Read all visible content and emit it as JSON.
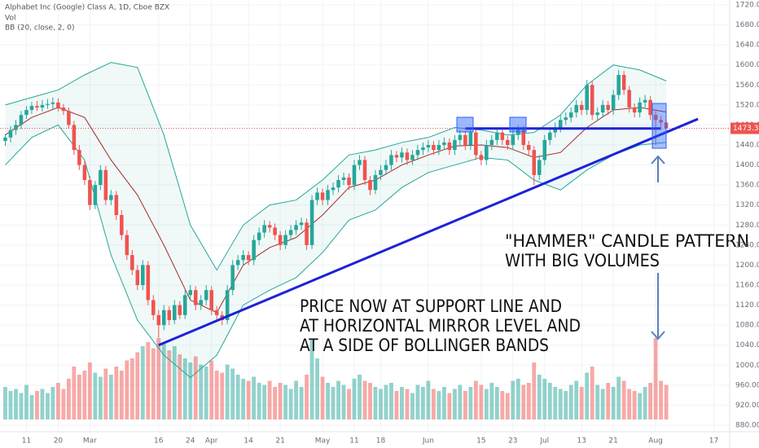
{
  "chart_data": {
    "type": "candlestick",
    "title": "Alphabet Inc (Google) Class A, 1D, Cboe BZX",
    "volume_label": "Vol",
    "indicator_label": "BB (20, close, 2, 0)",
    "up_color": "#26a69a",
    "down_color": "#ef5350",
    "band_color": "#26a69a",
    "middle_color": "#a52a2a",
    "line_color": "#1e22d8",
    "grid": true,
    "xlim": [
      -1,
      137
    ],
    "ylim": [
      880,
      1720
    ],
    "yticks": [
      {
        "value": 880,
        "label": "880.00"
      },
      {
        "value": 920,
        "label": "920.00"
      },
      {
        "value": 960,
        "label": "960.00"
      },
      {
        "value": 1000,
        "label": "1000.00"
      },
      {
        "value": 1040,
        "label": "1040.00"
      },
      {
        "value": 1080,
        "label": "1080.00"
      },
      {
        "value": 1120,
        "label": "1120.00"
      },
      {
        "value": 1160,
        "label": "1160.00"
      },
      {
        "value": 1200,
        "label": "1200.00"
      },
      {
        "value": 1240,
        "label": "1240.00"
      },
      {
        "value": 1280,
        "label": "1280.00"
      },
      {
        "value": 1320,
        "label": "1320.00"
      },
      {
        "value": 1360,
        "label": "1360.00"
      },
      {
        "value": 1400,
        "label": "1400.00"
      },
      {
        "value": 1440,
        "label": "1440.00"
      },
      {
        "value": 1480,
        "label": "1480.00"
      },
      {
        "value": 1520,
        "label": "1520.00"
      },
      {
        "value": 1560,
        "label": "1560.00"
      },
      {
        "value": 1600,
        "label": "1600.00"
      },
      {
        "value": 1640,
        "label": "1640.00"
      },
      {
        "value": 1680,
        "label": "1680.00"
      },
      {
        "value": 1720,
        "label": "1720.00"
      }
    ],
    "xticks": [
      {
        "value": 4,
        "label": "11"
      },
      {
        "value": 10,
        "label": "20"
      },
      {
        "value": 16,
        "label": "Mar"
      },
      {
        "value": 29,
        "label": "16"
      },
      {
        "value": 35,
        "label": "24"
      },
      {
        "value": 39,
        "label": "Apr"
      },
      {
        "value": 46,
        "label": "14"
      },
      {
        "value": 52,
        "label": "21"
      },
      {
        "value": 60,
        "label": "May"
      },
      {
        "value": 66,
        "label": "11"
      },
      {
        "value": 71,
        "label": "18"
      },
      {
        "value": 80,
        "label": "Jun"
      },
      {
        "value": 90,
        "label": "15"
      },
      {
        "value": 96,
        "label": "23"
      },
      {
        "value": 102,
        "label": "Jul"
      },
      {
        "value": 109,
        "label": "13"
      },
      {
        "value": 115,
        "label": "21"
      },
      {
        "value": 123,
        "label": "Aug"
      },
      {
        "value": 134,
        "label": "17"
      }
    ],
    "ohlc": [
      [
        1448,
        1462,
        1438,
        1455
      ],
      [
        1455,
        1478,
        1445,
        1470
      ],
      [
        1470,
        1490,
        1460,
        1480
      ],
      [
        1480,
        1508,
        1472,
        1500
      ],
      [
        1500,
        1518,
        1492,
        1510
      ],
      [
        1510,
        1526,
        1502,
        1518
      ],
      [
        1518,
        1528,
        1508,
        1515
      ],
      [
        1515,
        1530,
        1507,
        1520
      ],
      [
        1520,
        1532,
        1512,
        1522
      ],
      [
        1522,
        1535,
        1512,
        1525
      ],
      [
        1525,
        1533,
        1507,
        1515
      ],
      [
        1515,
        1522,
        1500,
        1508
      ],
      [
        1508,
        1515,
        1472,
        1480
      ],
      [
        1480,
        1488,
        1420,
        1430
      ],
      [
        1430,
        1440,
        1390,
        1400
      ],
      [
        1400,
        1410,
        1360,
        1370
      ],
      [
        1370,
        1378,
        1310,
        1320
      ],
      [
        1320,
        1368,
        1312,
        1360
      ],
      [
        1360,
        1400,
        1350,
        1390
      ],
      [
        1390,
        1398,
        1320,
        1330
      ],
      [
        1330,
        1350,
        1320,
        1340
      ],
      [
        1340,
        1348,
        1290,
        1300
      ],
      [
        1300,
        1310,
        1250,
        1260
      ],
      [
        1260,
        1270,
        1210,
        1220
      ],
      [
        1220,
        1230,
        1180,
        1190
      ],
      [
        1190,
        1200,
        1150,
        1160
      ],
      [
        1160,
        1210,
        1150,
        1200
      ],
      [
        1200,
        1208,
        1120,
        1130
      ],
      [
        1130,
        1140,
        1090,
        1100
      ],
      [
        1100,
        1110,
        1055,
        1080
      ],
      [
        1080,
        1120,
        1070,
        1110
      ],
      [
        1110,
        1118,
        1080,
        1090
      ],
      [
        1090,
        1130,
        1082,
        1120
      ],
      [
        1120,
        1128,
        1092,
        1100
      ],
      [
        1100,
        1150,
        1092,
        1140
      ],
      [
        1140,
        1160,
        1130,
        1150
      ],
      [
        1150,
        1158,
        1110,
        1120
      ],
      [
        1120,
        1140,
        1110,
        1130
      ],
      [
        1130,
        1160,
        1120,
        1150
      ],
      [
        1150,
        1158,
        1100,
        1110
      ],
      [
        1110,
        1118,
        1090,
        1100
      ],
      [
        1100,
        1108,
        1080,
        1090
      ],
      [
        1090,
        1160,
        1082,
        1150
      ],
      [
        1150,
        1210,
        1140,
        1200
      ],
      [
        1200,
        1220,
        1190,
        1210
      ],
      [
        1210,
        1230,
        1200,
        1220
      ],
      [
        1220,
        1228,
        1200,
        1210
      ],
      [
        1210,
        1260,
        1200,
        1250
      ],
      [
        1250,
        1275,
        1240,
        1265
      ],
      [
        1265,
        1290,
        1255,
        1280
      ],
      [
        1280,
        1288,
        1265,
        1275
      ],
      [
        1275,
        1283,
        1250,
        1260
      ],
      [
        1260,
        1268,
        1230,
        1240
      ],
      [
        1240,
        1270,
        1232,
        1260
      ],
      [
        1260,
        1280,
        1250,
        1270
      ],
      [
        1270,
        1290,
        1260,
        1280
      ],
      [
        1280,
        1295,
        1270,
        1285
      ],
      [
        1285,
        1293,
        1230,
        1240
      ],
      [
        1240,
        1340,
        1232,
        1330
      ],
      [
        1330,
        1355,
        1320,
        1345
      ],
      [
        1345,
        1353,
        1320,
        1330
      ],
      [
        1330,
        1360,
        1320,
        1350
      ],
      [
        1350,
        1365,
        1340,
        1355
      ],
      [
        1355,
        1380,
        1345,
        1370
      ],
      [
        1370,
        1385,
        1360,
        1375
      ],
      [
        1375,
        1383,
        1350,
        1360
      ],
      [
        1360,
        1410,
        1350,
        1400
      ],
      [
        1400,
        1420,
        1390,
        1410
      ],
      [
        1410,
        1418,
        1360,
        1370
      ],
      [
        1370,
        1378,
        1340,
        1350
      ],
      [
        1350,
        1390,
        1342,
        1380
      ],
      [
        1380,
        1400,
        1370,
        1390
      ],
      [
        1390,
        1410,
        1380,
        1400
      ],
      [
        1400,
        1430,
        1390,
        1420
      ],
      [
        1420,
        1428,
        1405,
        1415
      ],
      [
        1415,
        1435,
        1405,
        1425
      ],
      [
        1425,
        1433,
        1400,
        1410
      ],
      [
        1410,
        1430,
        1400,
        1420
      ],
      [
        1420,
        1440,
        1410,
        1430
      ],
      [
        1430,
        1445,
        1420,
        1435
      ],
      [
        1435,
        1450,
        1425,
        1440
      ],
      [
        1440,
        1448,
        1420,
        1430
      ],
      [
        1430,
        1450,
        1420,
        1440
      ],
      [
        1440,
        1455,
        1430,
        1445
      ],
      [
        1445,
        1453,
        1420,
        1430
      ],
      [
        1430,
        1460,
        1420,
        1450
      ],
      [
        1450,
        1470,
        1440,
        1460
      ],
      [
        1460,
        1468,
        1430,
        1440
      ],
      [
        1440,
        1475,
        1430,
        1465
      ],
      [
        1465,
        1473,
        1410,
        1420
      ],
      [
        1420,
        1428,
        1400,
        1410
      ],
      [
        1410,
        1450,
        1400,
        1440
      ],
      [
        1440,
        1460,
        1430,
        1450
      ],
      [
        1450,
        1475,
        1440,
        1465
      ],
      [
        1465,
        1473,
        1440,
        1450
      ],
      [
        1450,
        1458,
        1430,
        1440
      ],
      [
        1440,
        1470,
        1430,
        1460
      ],
      [
        1460,
        1480,
        1450,
        1470
      ],
      [
        1470,
        1478,
        1430,
        1440
      ],
      [
        1440,
        1448,
        1420,
        1430
      ],
      [
        1430,
        1438,
        1360,
        1380
      ],
      [
        1380,
        1420,
        1370,
        1410
      ],
      [
        1410,
        1460,
        1400,
        1450
      ],
      [
        1450,
        1475,
        1440,
        1465
      ],
      [
        1465,
        1485,
        1455,
        1475
      ],
      [
        1475,
        1500,
        1465,
        1490
      ],
      [
        1490,
        1505,
        1480,
        1495
      ],
      [
        1495,
        1515,
        1485,
        1505
      ],
      [
        1505,
        1530,
        1495,
        1520
      ],
      [
        1520,
        1528,
        1500,
        1510
      ],
      [
        1510,
        1570,
        1500,
        1560
      ],
      [
        1560,
        1568,
        1490,
        1500
      ],
      [
        1500,
        1515,
        1490,
        1505
      ],
      [
        1505,
        1530,
        1495,
        1520
      ],
      [
        1520,
        1528,
        1500,
        1510
      ],
      [
        1510,
        1550,
        1500,
        1540
      ],
      [
        1540,
        1590,
        1530,
        1580
      ],
      [
        1580,
        1588,
        1540,
        1550
      ],
      [
        1550,
        1558,
        1505,
        1515
      ],
      [
        1515,
        1523,
        1495,
        1505
      ],
      [
        1505,
        1535,
        1495,
        1525
      ],
      [
        1525,
        1540,
        1515,
        1530
      ],
      [
        1530,
        1538,
        1490,
        1500
      ],
      [
        1500,
        1508,
        1440,
        1490
      ],
      [
        1490,
        1498,
        1475,
        1485
      ],
      [
        1485,
        1490,
        1465,
        1473.3
      ]
    ],
    "volume": [
      1.6,
      1.4,
      1.5,
      1.3,
      1.7,
      1.2,
      1.4,
      1.5,
      1.3,
      1.6,
      1.8,
      1.5,
      2.0,
      2.6,
      2.2,
      2.4,
      2.8,
      2.3,
      2.1,
      2.5,
      2.2,
      2.6,
      2.4,
      2.9,
      3.0,
      3.3,
      3.6,
      3.8,
      3.5,
      4.0,
      3.7,
      3.4,
      3.6,
      3.2,
      3.0,
      2.8,
      3.1,
      2.7,
      2.6,
      2.9,
      2.4,
      2.3,
      2.7,
      2.5,
      2.2,
      2.0,
      1.9,
      2.1,
      1.8,
      1.7,
      1.9,
      1.6,
      1.8,
      1.7,
      1.5,
      1.9,
      1.6,
      2.2,
      3.9,
      3.0,
      2.1,
      1.8,
      1.6,
      1.9,
      1.7,
      1.5,
      2.0,
      2.2,
      1.9,
      1.8,
      1.6,
      1.5,
      1.7,
      1.8,
      1.4,
      1.6,
      1.5,
      1.3,
      1.7,
      1.6,
      1.9,
      1.5,
      1.4,
      1.6,
      1.3,
      1.5,
      1.7,
      1.4,
      1.6,
      1.9,
      1.7,
      1.5,
      1.8,
      1.6,
      1.4,
      1.3,
      1.9,
      2.0,
      1.7,
      1.8,
      2.8,
      2.2,
      2.0,
      1.8,
      1.6,
      1.5,
      1.4,
      1.7,
      1.9,
      1.6,
      2.3,
      2.6,
      1.7,
      1.5,
      1.8,
      1.6,
      2.1,
      1.9,
      1.5,
      1.4,
      1.3,
      1.6,
      1.8,
      4.0,
      1.9,
      1.7
    ],
    "bollinger": {
      "x": [
        0,
        5,
        10,
        15,
        20,
        25,
        30,
        35,
        40,
        45,
        50,
        55,
        60,
        65,
        70,
        75,
        80,
        85,
        90,
        95,
        100,
        105,
        110,
        115,
        120,
        125
      ],
      "upper": [
        1520,
        1535,
        1550,
        1580,
        1605,
        1595,
        1460,
        1280,
        1190,
        1280,
        1320,
        1330,
        1370,
        1420,
        1430,
        1445,
        1455,
        1475,
        1470,
        1460,
        1465,
        1500,
        1560,
        1600,
        1590,
        1568
      ],
      "middle": [
        1460,
        1495,
        1515,
        1495,
        1410,
        1340,
        1240,
        1130,
        1105,
        1200,
        1235,
        1255,
        1300,
        1355,
        1370,
        1400,
        1420,
        1438,
        1440,
        1435,
        1415,
        1425,
        1475,
        1510,
        1515,
        1506
      ],
      "lower": [
        1400,
        1455,
        1480,
        1410,
        1220,
        1090,
        1020,
        975,
        1020,
        1120,
        1150,
        1175,
        1225,
        1290,
        1310,
        1355,
        1385,
        1400,
        1415,
        1410,
        1370,
        1350,
        1390,
        1420,
        1440,
        1445
      ]
    },
    "last_price": {
      "value": 1473.3,
      "label": "1473.30"
    },
    "trendline": {
      "x": [
        29,
        131
      ],
      "values": [
        1040,
        1492
      ]
    },
    "mirror_level": {
      "x": [
        87,
        124
      ],
      "value": 1473
    },
    "annotations": [
      "PRICE NOW AT SUPPORT LINE AND",
      "AT HORIZONTAL MIRROR LEVEL AND",
      "AT A SIDE OF BOLLINGER BANDS",
      "\"HAMMER\" CANDLE PATTERN",
      "WITH BIG VOLUMES"
    ]
  }
}
